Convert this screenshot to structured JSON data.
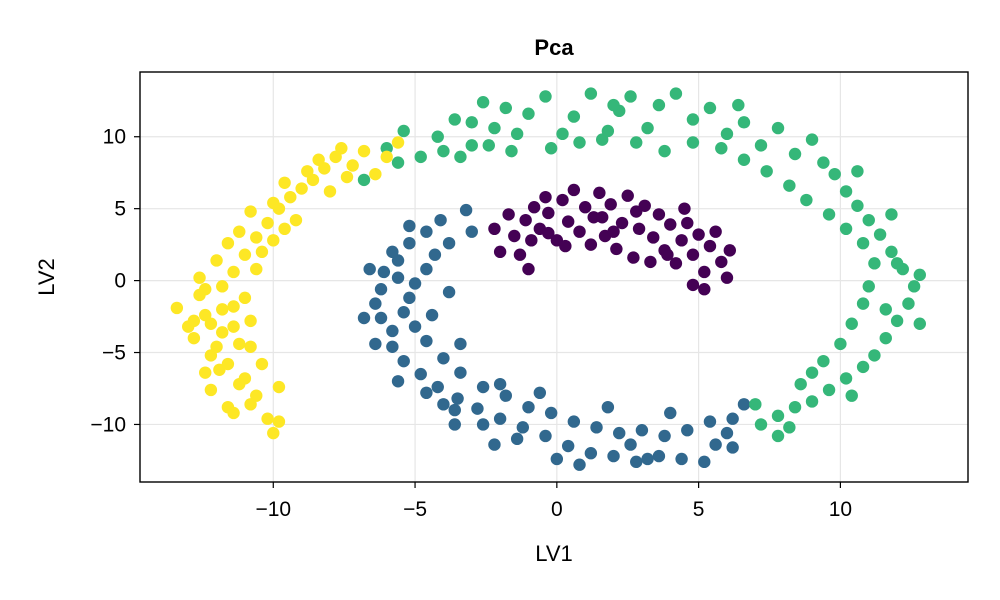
{
  "chart_data": {
    "type": "scatter",
    "title": "Pca",
    "xlabel": "LV1",
    "ylabel": "LV2",
    "xlim": [
      -14.7,
      14.5
    ],
    "ylim": [
      -14.0,
      14.5
    ],
    "xticks": [
      -10,
      -5,
      0,
      5,
      10
    ],
    "yticks": [
      -10,
      -5,
      0,
      5,
      10
    ],
    "xtick_labels": [
      "−10",
      "−5",
      "0",
      "5",
      "10"
    ],
    "ytick_labels": [
      "−10",
      "−5",
      "0",
      "5",
      "10"
    ],
    "grid": true,
    "legend": "none",
    "series": [
      {
        "color": "#440154",
        "points": [
          [
            -2.2,
            3.6
          ],
          [
            -2.0,
            2.0
          ],
          [
            -1.7,
            4.6
          ],
          [
            -1.5,
            3.1
          ],
          [
            -1.3,
            1.8
          ],
          [
            -1.1,
            4.2
          ],
          [
            -0.9,
            2.8
          ],
          [
            -0.8,
            5.1
          ],
          [
            -0.6,
            3.6
          ],
          [
            -0.4,
            5.8
          ],
          [
            -0.3,
            4.7
          ],
          [
            0.0,
            2.8
          ],
          [
            0.2,
            5.6
          ],
          [
            0.4,
            4.1
          ],
          [
            0.6,
            6.3
          ],
          [
            0.8,
            3.4
          ],
          [
            1.0,
            5.1
          ],
          [
            1.2,
            2.5
          ],
          [
            1.3,
            4.4
          ],
          [
            1.5,
            6.1
          ],
          [
            1.7,
            3.1
          ],
          [
            1.9,
            5.3
          ],
          [
            2.1,
            2.2
          ],
          [
            2.3,
            4.0
          ],
          [
            2.5,
            5.9
          ],
          [
            2.7,
            1.6
          ],
          [
            2.9,
            3.6
          ],
          [
            3.1,
            5.2
          ],
          [
            3.3,
            1.3
          ],
          [
            3.4,
            3.0
          ],
          [
            3.6,
            4.6
          ],
          [
            3.8,
            2.1
          ],
          [
            4.0,
            3.9
          ],
          [
            4.2,
            1.2
          ],
          [
            4.4,
            2.8
          ],
          [
            4.6,
            4.0
          ],
          [
            4.8,
            1.8
          ],
          [
            5.0,
            3.2
          ],
          [
            5.2,
            0.6
          ],
          [
            5.4,
            2.4
          ],
          [
            5.6,
            3.4
          ],
          [
            5.8,
            1.3
          ],
          [
            6.0,
            0.2
          ],
          [
            5.2,
            -0.6
          ],
          [
            4.8,
            -0.3
          ],
          [
            6.1,
            2.1
          ],
          [
            3.9,
            1.8
          ],
          [
            2.0,
            3.4
          ],
          [
            0.3,
            2.4
          ],
          [
            -0.3,
            3.3
          ],
          [
            1.6,
            4.4
          ],
          [
            2.8,
            4.8
          ],
          [
            4.5,
            5.0
          ],
          [
            -1.0,
            0.8
          ]
        ]
      },
      {
        "color": "#31688e",
        "points": [
          [
            -3.2,
            4.9
          ],
          [
            -4.1,
            4.2
          ],
          [
            -4.6,
            3.4
          ],
          [
            -5.2,
            2.6
          ],
          [
            -5.6,
            1.4
          ],
          [
            -6.1,
            0.6
          ],
          [
            -6.2,
            -0.6
          ],
          [
            -6.4,
            -1.6
          ],
          [
            -6.2,
            -2.6
          ],
          [
            -5.8,
            -3.5
          ],
          [
            -5.8,
            -4.6
          ],
          [
            -5.4,
            -5.6
          ],
          [
            -4.8,
            -6.5
          ],
          [
            -4.2,
            -7.4
          ],
          [
            -3.5,
            -8.2
          ],
          [
            -2.8,
            -8.9
          ],
          [
            -2.0,
            -9.6
          ],
          [
            -1.2,
            -10.2
          ],
          [
            -0.4,
            -10.8
          ],
          [
            0.4,
            -11.5
          ],
          [
            1.2,
            -12.0
          ],
          [
            2.0,
            -12.2
          ],
          [
            2.8,
            -12.6
          ],
          [
            3.6,
            -12.2
          ],
          [
            4.4,
            -12.4
          ],
          [
            5.2,
            -12.6
          ],
          [
            5.6,
            -11.4
          ],
          [
            6.0,
            -10.6
          ],
          [
            6.2,
            -9.6
          ],
          [
            6.6,
            -8.6
          ],
          [
            -3.0,
            3.4
          ],
          [
            -3.8,
            2.6
          ],
          [
            -4.3,
            1.8
          ],
          [
            -4.6,
            0.8
          ],
          [
            -5.0,
            -0.2
          ],
          [
            -5.2,
            -1.2
          ],
          [
            -5.4,
            -2.2
          ],
          [
            -5.0,
            -3.2
          ],
          [
            -4.6,
            -4.2
          ],
          [
            -4.0,
            -5.4
          ],
          [
            -3.4,
            -6.4
          ],
          [
            -2.6,
            -7.4
          ],
          [
            -1.8,
            -8.0
          ],
          [
            -1.0,
            -8.8
          ],
          [
            -0.2,
            -9.2
          ],
          [
            0.6,
            -9.8
          ],
          [
            1.4,
            -10.2
          ],
          [
            2.2,
            -10.6
          ],
          [
            3.0,
            -10.4
          ],
          [
            3.8,
            -10.8
          ],
          [
            4.6,
            -10.4
          ],
          [
            5.4,
            -9.8
          ],
          [
            -2.6,
            -10.0
          ],
          [
            -3.6,
            -9.0
          ],
          [
            -4.6,
            -7.8
          ],
          [
            -5.6,
            -7.0
          ],
          [
            -6.8,
            -2.6
          ],
          [
            -6.6,
            0.8
          ],
          [
            -5.2,
            3.8
          ],
          [
            -2.2,
            -11.4
          ],
          [
            0.0,
            -12.4
          ],
          [
            -1.4,
            -11.0
          ],
          [
            2.6,
            -11.4
          ],
          [
            4.0,
            -9.2
          ],
          [
            1.8,
            -8.8
          ],
          [
            -0.6,
            -7.8
          ],
          [
            -3.4,
            -4.4
          ],
          [
            -4.4,
            -2.4
          ],
          [
            -3.8,
            -0.8
          ],
          [
            -5.8,
            2.0
          ],
          [
            -3.6,
            -10.0
          ],
          [
            0.8,
            -12.8
          ],
          [
            3.2,
            -12.4
          ],
          [
            6.2,
            -11.6
          ],
          [
            -2.0,
            -7.2
          ],
          [
            -4.0,
            -8.6
          ],
          [
            -6.4,
            -4.4
          ],
          [
            -5.6,
            0.2
          ]
        ]
      },
      {
        "color": "#35b779",
        "points": [
          [
            -6.8,
            7.0
          ],
          [
            -6.0,
            9.2
          ],
          [
            -5.4,
            10.4
          ],
          [
            -4.8,
            8.6
          ],
          [
            -4.2,
            10.0
          ],
          [
            -3.6,
            11.2
          ],
          [
            -3.0,
            9.4
          ],
          [
            -2.6,
            12.4
          ],
          [
            -2.2,
            10.6
          ],
          [
            -1.6,
            9.0
          ],
          [
            -1.0,
            11.6
          ],
          [
            -0.4,
            12.8
          ],
          [
            0.2,
            10.2
          ],
          [
            0.6,
            11.4
          ],
          [
            1.2,
            13.0
          ],
          [
            1.6,
            9.8
          ],
          [
            2.2,
            11.8
          ],
          [
            2.6,
            12.8
          ],
          [
            3.2,
            10.6
          ],
          [
            3.6,
            12.2
          ],
          [
            4.2,
            13.0
          ],
          [
            4.8,
            11.2
          ],
          [
            5.4,
            12.0
          ],
          [
            6.0,
            10.2
          ],
          [
            6.6,
            11.0
          ],
          [
            7.2,
            9.4
          ],
          [
            7.8,
            10.6
          ],
          [
            8.4,
            8.8
          ],
          [
            9.0,
            9.8
          ],
          [
            9.4,
            8.2
          ],
          [
            9.8,
            7.4
          ],
          [
            10.2,
            6.2
          ],
          [
            10.6,
            5.2
          ],
          [
            11.0,
            4.2
          ],
          [
            11.4,
            3.2
          ],
          [
            11.8,
            2.0
          ],
          [
            12.2,
            0.8
          ],
          [
            12.6,
            -0.4
          ],
          [
            12.8,
            0.4
          ],
          [
            12.4,
            -1.6
          ],
          [
            12.0,
            -2.8
          ],
          [
            11.6,
            -4.0
          ],
          [
            11.2,
            -5.2
          ],
          [
            10.8,
            -6.0
          ],
          [
            10.2,
            -6.8
          ],
          [
            9.6,
            -7.6
          ],
          [
            9.0,
            -8.4
          ],
          [
            8.4,
            -8.8
          ],
          [
            7.8,
            -9.4
          ],
          [
            7.2,
            -10.0
          ],
          [
            7.8,
            -10.8
          ],
          [
            8.6,
            -7.2
          ],
          [
            9.4,
            -5.6
          ],
          [
            10.0,
            -4.4
          ],
          [
            10.4,
            -3.0
          ],
          [
            10.8,
            -1.6
          ],
          [
            11.0,
            -0.4
          ],
          [
            11.2,
            1.2
          ],
          [
            10.8,
            2.6
          ],
          [
            10.2,
            3.6
          ],
          [
            9.6,
            4.6
          ],
          [
            8.8,
            5.6
          ],
          [
            8.2,
            6.6
          ],
          [
            7.4,
            7.6
          ],
          [
            6.6,
            8.4
          ],
          [
            5.8,
            9.2
          ],
          [
            4.8,
            9.6
          ],
          [
            3.8,
            9.0
          ],
          [
            2.8,
            9.6
          ],
          [
            1.8,
            10.4
          ],
          [
            0.8,
            9.6
          ],
          [
            -0.2,
            9.2
          ],
          [
            -1.4,
            10.2
          ],
          [
            -2.4,
            9.4
          ],
          [
            -3.4,
            8.6
          ],
          [
            -4.0,
            9.0
          ],
          [
            -5.6,
            8.2
          ],
          [
            12.0,
            1.2
          ],
          [
            11.6,
            -2.0
          ],
          [
            12.8,
            -3.0
          ],
          [
            11.8,
            4.6
          ],
          [
            10.4,
            -8.0
          ],
          [
            9.0,
            -6.4
          ],
          [
            7.0,
            -8.6
          ],
          [
            8.2,
            -10.2
          ],
          [
            10.6,
            7.6
          ],
          [
            6.4,
            12.2
          ],
          [
            2.0,
            12.2
          ],
          [
            -1.8,
            12.0
          ],
          [
            -3.0,
            11.0
          ]
        ]
      },
      {
        "color": "#fde725",
        "points": [
          [
            -13.4,
            -1.9
          ],
          [
            -13.0,
            -3.2
          ],
          [
            -12.8,
            -4.0
          ],
          [
            -12.6,
            -1.0
          ],
          [
            -12.6,
            0.2
          ],
          [
            -12.4,
            -2.4
          ],
          [
            -12.2,
            -5.2
          ],
          [
            -12.2,
            -7.6
          ],
          [
            -11.9,
            -6.2
          ],
          [
            -11.8,
            -3.6
          ],
          [
            -11.6,
            -8.8
          ],
          [
            -11.4,
            -9.2
          ],
          [
            -11.4,
            -1.8
          ],
          [
            -11.2,
            -4.4
          ],
          [
            -11.0,
            -6.8
          ],
          [
            -10.8,
            -2.8
          ],
          [
            -10.6,
            -8.0
          ],
          [
            -10.4,
            -5.8
          ],
          [
            -10.2,
            -9.6
          ],
          [
            -10.0,
            -10.6
          ],
          [
            -9.8,
            -7.4
          ],
          [
            -12.0,
            1.4
          ],
          [
            -11.6,
            2.6
          ],
          [
            -11.2,
            3.4
          ],
          [
            -10.8,
            4.8
          ],
          [
            -10.4,
            2.0
          ],
          [
            -10.0,
            5.4
          ],
          [
            -9.6,
            6.8
          ],
          [
            -9.2,
            4.2
          ],
          [
            -8.8,
            7.6
          ],
          [
            -8.4,
            8.4
          ],
          [
            -8.0,
            6.2
          ],
          [
            -7.6,
            9.2
          ],
          [
            -7.2,
            8.0
          ],
          [
            -6.8,
            9.0
          ],
          [
            -6.4,
            7.4
          ],
          [
            -6.0,
            8.6
          ],
          [
            -5.6,
            9.6
          ],
          [
            -12.4,
            -0.6
          ],
          [
            -11.8,
            -2.0
          ],
          [
            -11.4,
            0.6
          ],
          [
            -11.0,
            1.8
          ],
          [
            -10.6,
            3.0
          ],
          [
            -10.2,
            4.0
          ],
          [
            -9.8,
            5.0
          ],
          [
            -9.4,
            5.8
          ],
          [
            -9.0,
            6.4
          ],
          [
            -8.6,
            7.0
          ],
          [
            -8.2,
            7.8
          ],
          [
            -7.8,
            8.6
          ],
          [
            -7.4,
            7.2
          ],
          [
            -12.8,
            -2.8
          ],
          [
            -12.0,
            -4.6
          ],
          [
            -11.6,
            -5.8
          ],
          [
            -11.2,
            -7.2
          ],
          [
            -10.8,
            -8.6
          ],
          [
            -9.8,
            -9.8
          ],
          [
            -12.4,
            -6.4
          ],
          [
            -11.8,
            -0.4
          ],
          [
            -10.6,
            0.8
          ],
          [
            -11.0,
            -1.2
          ],
          [
            -10.0,
            2.8
          ],
          [
            -9.6,
            3.6
          ],
          [
            -10.8,
            -4.6
          ],
          [
            -12.2,
            -3.0
          ],
          [
            -11.4,
            -3.2
          ]
        ]
      }
    ]
  }
}
